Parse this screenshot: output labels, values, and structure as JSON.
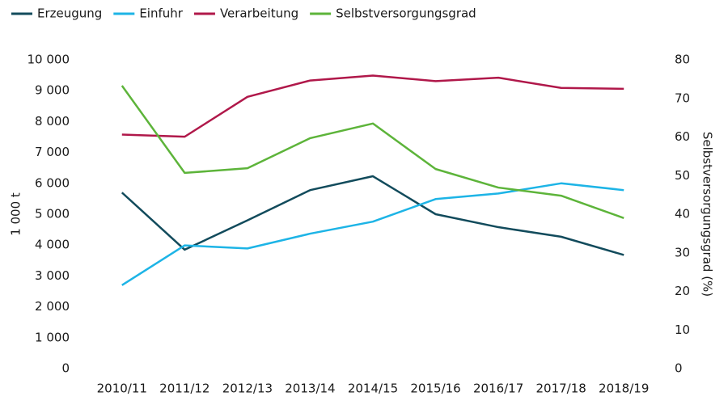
{
  "chart_data": {
    "type": "line",
    "categories": [
      "2010/11",
      "2011/12",
      "2012/13",
      "2013/14",
      "2014/15",
      "2015/16",
      "2016/17",
      "2017/18",
      "2018/19"
    ],
    "series": [
      {
        "name": "Erzeugung",
        "color": "#124b5c",
        "values": [
          5700,
          3850,
          4800,
          5780,
          6230,
          5000,
          4580,
          4270,
          3680
        ]
      },
      {
        "name": "Einfuhr",
        "color": "#1db4e6",
        "values": [
          2700,
          3990,
          3890,
          4370,
          4760,
          5490,
          5670,
          6000,
          5780
        ]
      },
      {
        "name": "Verarbeitung",
        "color": "#b0184a",
        "values": [
          7580,
          7510,
          8800,
          9330,
          9490,
          9310,
          9420,
          9090,
          9060
        ]
      },
      {
        "name": "Selbstversorgungsgrad",
        "color": "#5db43a",
        "axis": "y2",
        "values": [
          73.3,
          50.7,
          51.9,
          59.7,
          63.5,
          51.7,
          46.9,
          44.8,
          39.0
        ]
      }
    ],
    "ylabel": "1 000 t",
    "y2label": "Selbstversorgungsgrad (%)",
    "ylim": [
      0,
      10000
    ],
    "yticks": [
      0,
      {
        "value": 1000,
        "label": "1 000"
      },
      {
        "value": 2000,
        "label": "2 000"
      },
      {
        "value": 3000,
        "label": "3 000"
      },
      {
        "value": 4000,
        "label": "4 000"
      },
      {
        "value": 5000,
        "label": "5 000"
      },
      {
        "value": 6000,
        "label": "6 000"
      },
      {
        "value": 7000,
        "label": "7 000"
      },
      {
        "value": 8000,
        "label": "8 000"
      },
      {
        "value": 9000,
        "label": "9 000"
      },
      {
        "value": 10000,
        "label": "10 000"
      }
    ],
    "y2lim": [
      0,
      80
    ],
    "y2ticks": [
      0,
      10,
      20,
      30,
      40,
      50,
      60,
      70,
      80
    ],
    "legend": "top"
  }
}
